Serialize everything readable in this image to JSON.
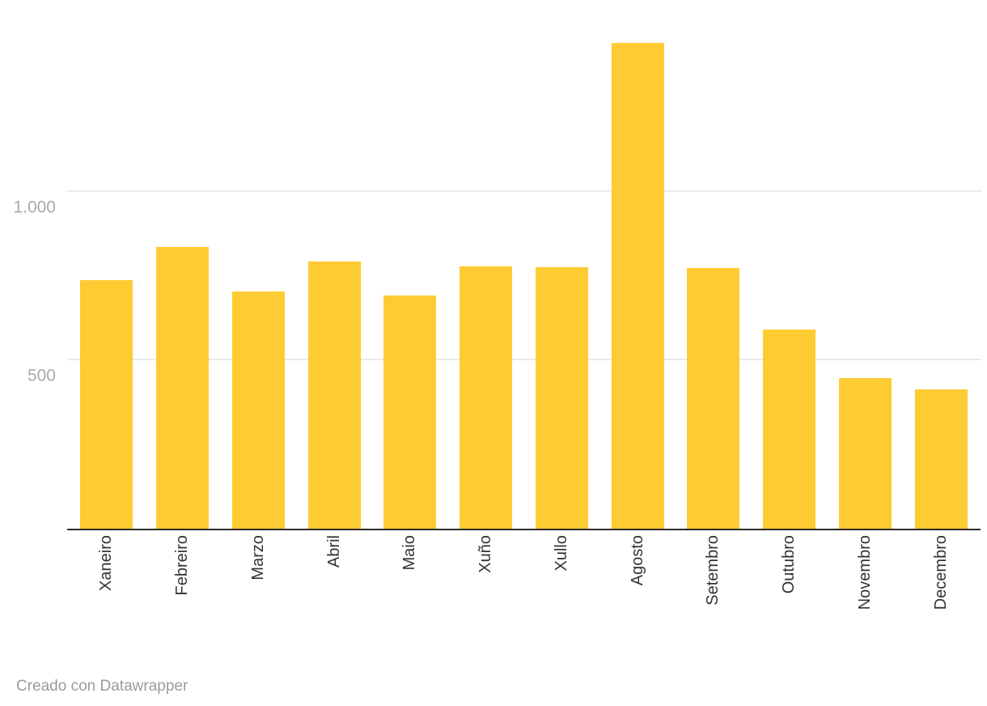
{
  "chart_data": {
    "type": "bar",
    "categories": [
      "Xaneiro",
      "Febreiro",
      "Marzo",
      "Abril",
      "Maio",
      "Xuño",
      "Xullo",
      "Agosto",
      "Setembro",
      "Outubro",
      "Novembro",
      "Decembro"
    ],
    "values": [
      738,
      837,
      704,
      793,
      692,
      780,
      776,
      1442,
      774,
      591,
      447,
      413
    ],
    "title": "",
    "xlabel": "",
    "ylabel": "",
    "ylim": [
      0,
      1570
    ],
    "yticks": [
      500,
      1000
    ],
    "ytick_labels": [
      "500",
      "1.000"
    ],
    "grid": true,
    "legend": "none"
  },
  "colors": {
    "bar": "#FFCB33",
    "gridline": "#E9E9E9",
    "axis_line": "#2B2B2B",
    "ytick_label": "#A9A9A9",
    "xtick_label": "#333333",
    "footer_text": "#9B9B9B",
    "background": "#FFFFFF"
  },
  "footer": {
    "credit": "Creado con Datawrapper"
  }
}
